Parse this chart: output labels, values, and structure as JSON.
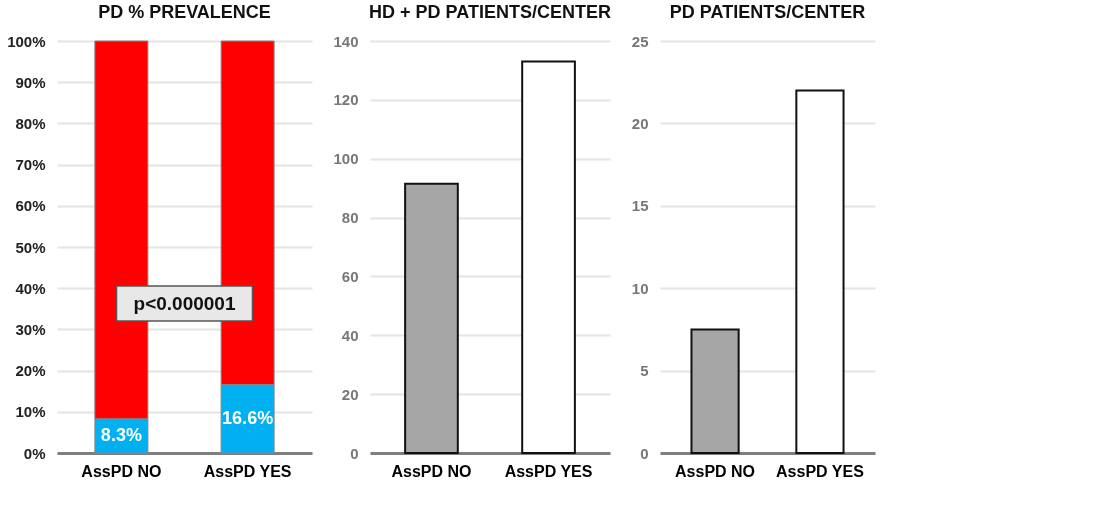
{
  "chart_data": [
    {
      "type": "bar",
      "title": "PD % PREVALENCE",
      "categories": [
        "AssPD NO",
        "AssPD YES"
      ],
      "stacked": true,
      "series": [
        {
          "color": "#00b0f0",
          "values": [
            8.3,
            16.6
          ],
          "value_labels": [
            "8.3%",
            "16.6%"
          ]
        },
        {
          "color": "#ff0000",
          "values": [
            91.7,
            83.4
          ]
        }
      ],
      "ylim": [
        0,
        100
      ],
      "yticks": [
        {
          "value": 0,
          "label": "0%"
        },
        {
          "value": 10,
          "label": "10%"
        },
        {
          "value": 20,
          "label": "20%"
        },
        {
          "value": 30,
          "label": "30%"
        },
        {
          "value": 40,
          "label": "40%"
        },
        {
          "value": 50,
          "label": "50%"
        },
        {
          "value": 60,
          "label": "60%"
        },
        {
          "value": 70,
          "label": "70%"
        },
        {
          "value": 80,
          "label": "80%"
        },
        {
          "value": 90,
          "label": "90%"
        },
        {
          "value": 100,
          "label": "100%"
        }
      ],
      "grid": "y",
      "annotations": [
        "p<0.000001"
      ]
    },
    {
      "type": "bar",
      "title": "HD + PD PATIENTS/CENTER",
      "categories": [
        "AssPD NO",
        "AssPD YES"
      ],
      "values": [
        91.5,
        133
      ],
      "colors": [
        "#a6a6a6",
        "#ffffff"
      ],
      "ylim": [
        0,
        140
      ],
      "yticks": [
        0,
        20,
        40,
        60,
        80,
        100,
        120,
        140
      ],
      "grid": "y"
    },
    {
      "type": "bar",
      "title": "PD PATIENTS/CENTER",
      "categories": [
        "AssPD NO",
        "AssPD YES"
      ],
      "values": [
        7.5,
        22
      ],
      "colors": [
        "#a6a6a6",
        "#ffffff"
      ],
      "ylim": [
        0,
        25
      ],
      "yticks": [
        0,
        5,
        10,
        15,
        20,
        25
      ],
      "grid": "y"
    }
  ]
}
